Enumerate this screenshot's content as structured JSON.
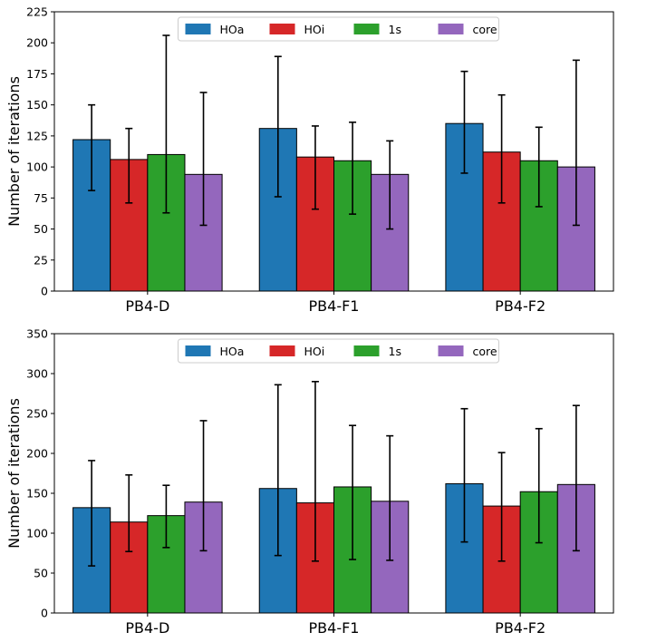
{
  "chart_data": [
    {
      "type": "bar",
      "title": "",
      "xlabel": "",
      "ylabel": "Number of iterations",
      "ylim": [
        0,
        225
      ],
      "yticks": [
        0,
        25,
        50,
        75,
        100,
        125,
        150,
        175,
        200,
        225
      ],
      "categories": [
        "PB4-D",
        "PB4-F1",
        "PB4-F2"
      ],
      "legend_position": "top-center",
      "series": [
        {
          "name": "HOa",
          "color": "#1f77b4",
          "values": [
            122,
            131,
            135
          ],
          "errors_low": [
            81,
            76,
            95
          ],
          "errors_high": [
            150,
            189,
            177
          ]
        },
        {
          "name": "HOi",
          "color": "#d62728",
          "values": [
            106,
            108,
            112
          ],
          "errors_low": [
            71,
            66,
            71
          ],
          "errors_high": [
            131,
            133,
            158
          ]
        },
        {
          "name": "1s",
          "color": "#2ca02c",
          "values": [
            110,
            105,
            105
          ],
          "errors_low": [
            63,
            62,
            68
          ],
          "errors_high": [
            206,
            136,
            132
          ]
        },
        {
          "name": "core",
          "color": "#9467bd",
          "values": [
            94,
            94,
            100
          ],
          "errors_low": [
            53,
            50,
            53
          ],
          "errors_high": [
            160,
            121,
            186
          ]
        }
      ]
    },
    {
      "type": "bar",
      "title": "",
      "xlabel": "",
      "ylabel": "Number of iterations",
      "ylim": [
        0,
        350
      ],
      "yticks": [
        0,
        50,
        100,
        150,
        200,
        250,
        300,
        350
      ],
      "categories": [
        "PB4-D",
        "PB4-F1",
        "PB4-F2"
      ],
      "legend_position": "top-center",
      "series": [
        {
          "name": "HOa",
          "color": "#1f77b4",
          "values": [
            132,
            156,
            162
          ],
          "errors_low": [
            59,
            72,
            89
          ],
          "errors_high": [
            191,
            286,
            256
          ]
        },
        {
          "name": "HOi",
          "color": "#d62728",
          "values": [
            114,
            138,
            134
          ],
          "errors_low": [
            77,
            65,
            65
          ],
          "errors_high": [
            173,
            290,
            201
          ]
        },
        {
          "name": "1s",
          "color": "#2ca02c",
          "values": [
            122,
            158,
            152
          ],
          "errors_low": [
            82,
            67,
            88
          ],
          "errors_high": [
            160,
            235,
            231
          ]
        },
        {
          "name": "core",
          "color": "#9467bd",
          "values": [
            139,
            140,
            161
          ],
          "errors_low": [
            78,
            66,
            78
          ],
          "errors_high": [
            241,
            222,
            260
          ]
        }
      ]
    }
  ]
}
